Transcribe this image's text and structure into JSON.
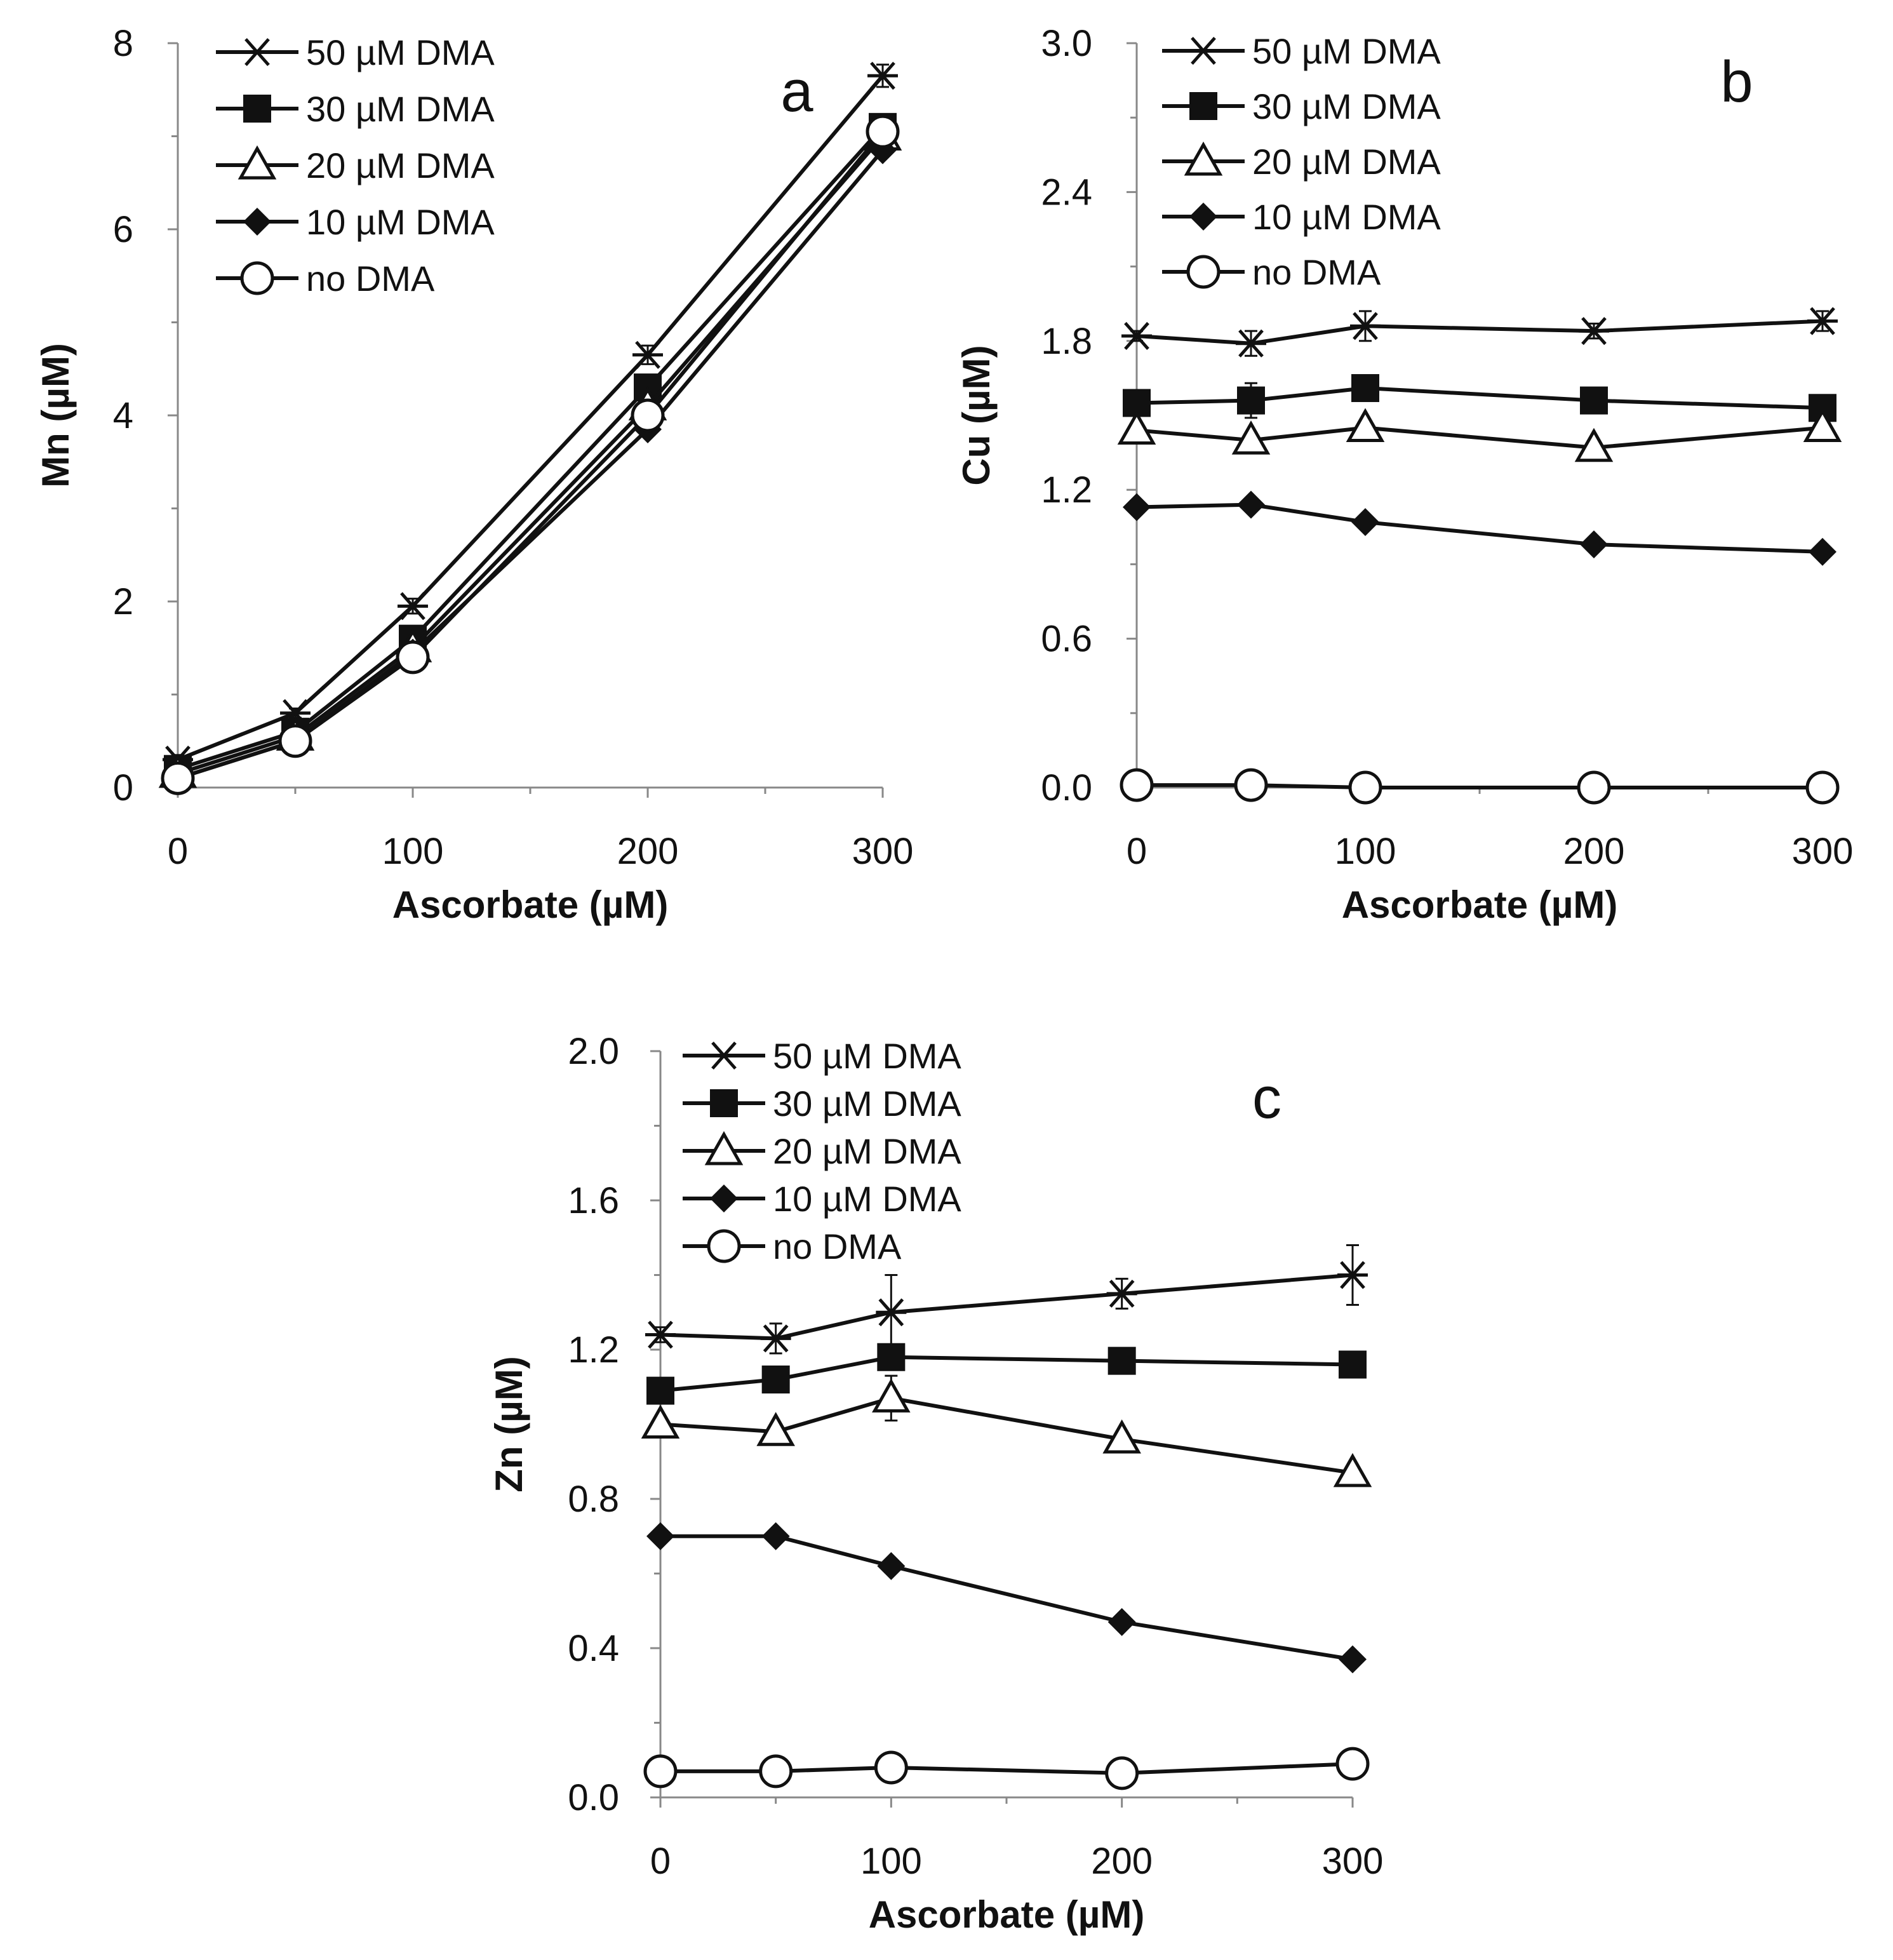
{
  "chart_data": [
    {
      "type": "line",
      "panel_label": "a",
      "xlabel": "Ascorbate (µM)",
      "ylabel": "Mn (µM)",
      "xlim": [
        0,
        300
      ],
      "ylim": [
        0,
        8
      ],
      "xticks": [
        0,
        100,
        200,
        300
      ],
      "yticks": [
        0,
        2,
        4,
        6,
        8
      ],
      "ytick_labels": [
        "0",
        "2",
        "4",
        "6",
        "8"
      ],
      "legend_position": "top-left",
      "grid": false,
      "x": [
        0,
        50,
        100,
        200,
        300
      ],
      "series": [
        {
          "name": "50 µM DMA",
          "marker": "star",
          "values": [
            0.3,
            0.8,
            1.95,
            4.65,
            7.65
          ],
          "errors": [
            0.05,
            0.05,
            0.08,
            0.1,
            0.12
          ]
        },
        {
          "name": "30 µM DMA",
          "marker": "square",
          "values": [
            0.2,
            0.6,
            1.6,
            4.3,
            7.1
          ],
          "errors": [
            0,
            0,
            0,
            0,
            0
          ]
        },
        {
          "name": "20 µM DMA",
          "marker": "triangle",
          "values": [
            0.15,
            0.55,
            1.5,
            4.1,
            7.0
          ],
          "errors": [
            0,
            0,
            0,
            0,
            0
          ]
        },
        {
          "name": "10 µM DMA",
          "marker": "diamond",
          "values": [
            0.1,
            0.5,
            1.45,
            3.85,
            6.85
          ],
          "errors": [
            0,
            0,
            0,
            0,
            0
          ]
        },
        {
          "name": "no DMA",
          "marker": "circle",
          "values": [
            0.1,
            0.5,
            1.4,
            4.0,
            7.05
          ],
          "errors": [
            0,
            0,
            0,
            0,
            0
          ]
        }
      ]
    },
    {
      "type": "line",
      "panel_label": "b",
      "xlabel": "Ascorbate (µM)",
      "ylabel": "Cu (µM)",
      "xlim": [
        0,
        300
      ],
      "ylim": [
        0,
        3.0
      ],
      "xticks": [
        0,
        100,
        200,
        300
      ],
      "yticks": [
        0,
        0.6,
        1.2,
        1.8,
        2.4,
        3.0
      ],
      "ytick_labels": [
        "0.0",
        "0.6",
        "1.2",
        "1.8",
        "2.4",
        "3.0"
      ],
      "legend_position": "top-left",
      "grid": false,
      "x": [
        0,
        50,
        100,
        200,
        300
      ],
      "series": [
        {
          "name": "50 µM DMA",
          "marker": "star",
          "values": [
            1.82,
            1.79,
            1.86,
            1.84,
            1.88
          ],
          "errors": [
            0.02,
            0.05,
            0.06,
            0.03,
            0.04
          ]
        },
        {
          "name": "30 µM DMA",
          "marker": "square",
          "values": [
            1.55,
            1.56,
            1.61,
            1.56,
            1.53
          ],
          "errors": [
            0.02,
            0.07,
            0.05,
            0.02,
            0.02
          ]
        },
        {
          "name": "20 µM DMA",
          "marker": "triangle",
          "values": [
            1.44,
            1.4,
            1.45,
            1.37,
            1.45
          ],
          "errors": [
            0,
            0,
            0,
            0,
            0
          ]
        },
        {
          "name": "10 µM DMA",
          "marker": "diamond",
          "values": [
            1.13,
            1.14,
            1.07,
            0.98,
            0.95
          ],
          "errors": [
            0,
            0,
            0,
            0,
            0
          ]
        },
        {
          "name": "no DMA",
          "marker": "circle",
          "values": [
            0.01,
            0.01,
            0.0,
            0.0,
            0.0
          ],
          "errors": [
            0,
            0,
            0,
            0,
            0
          ]
        }
      ]
    },
    {
      "type": "line",
      "panel_label": "c",
      "xlabel": "Ascorbate (µM)",
      "ylabel": "Zn (µM)",
      "xlim": [
        0,
        300
      ],
      "ylim": [
        0,
        2.0
      ],
      "xticks": [
        0,
        100,
        200,
        300
      ],
      "yticks": [
        0,
        0.4,
        0.8,
        1.2,
        1.6,
        2.0
      ],
      "ytick_labels": [
        "0.0",
        "0.4",
        "0.8",
        "1.2",
        "1.6",
        "2.0"
      ],
      "legend_position": "top-left",
      "grid": false,
      "x": [
        0,
        50,
        100,
        200,
        300
      ],
      "series": [
        {
          "name": "50 µM DMA",
          "marker": "star",
          "values": [
            1.24,
            1.23,
            1.3,
            1.35,
            1.4
          ],
          "errors": [
            0.02,
            0.04,
            0.1,
            0.04,
            0.08
          ]
        },
        {
          "name": "30 µM DMA",
          "marker": "square",
          "values": [
            1.09,
            1.12,
            1.18,
            1.17,
            1.16
          ],
          "errors": [
            0.02,
            0.02,
            0.03,
            0.02,
            0.02
          ]
        },
        {
          "name": "20 µM DMA",
          "marker": "triangle",
          "values": [
            1.0,
            0.98,
            1.07,
            0.96,
            0.87
          ],
          "errors": [
            0.01,
            0.02,
            0.06,
            0.02,
            0.02
          ]
        },
        {
          "name": "10 µM DMA",
          "marker": "diamond",
          "values": [
            0.7,
            0.7,
            0.62,
            0.47,
            0.37
          ],
          "errors": [
            0,
            0,
            0,
            0,
            0
          ]
        },
        {
          "name": "no DMA",
          "marker": "circle",
          "values": [
            0.07,
            0.07,
            0.08,
            0.065,
            0.09
          ],
          "errors": [
            0,
            0,
            0,
            0,
            0.01
          ]
        }
      ]
    }
  ]
}
